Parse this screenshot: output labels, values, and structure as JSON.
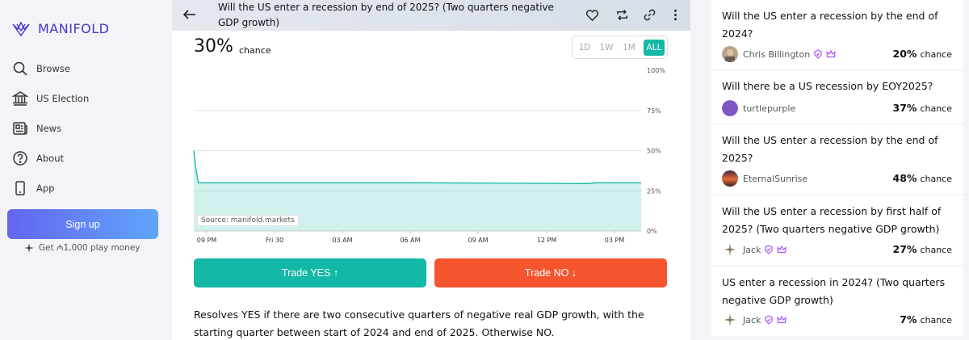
{
  "brand": {
    "name": "MANIFOLD",
    "accent": "#4337c9"
  },
  "nav": [
    {
      "label": "Browse",
      "icon": "search-icon"
    },
    {
      "label": "US Election",
      "icon": "capitol-icon"
    },
    {
      "label": "News",
      "icon": "newspaper-icon"
    },
    {
      "label": "About",
      "icon": "question-circle-icon"
    },
    {
      "label": "App",
      "icon": "phone-icon"
    }
  ],
  "signup": {
    "label": "Sign up",
    "bonus": "Get ₼1,000 play money"
  },
  "market": {
    "title": "Will the US enter a recession by end of 2025? (Two quarters negative GDP growth)",
    "probability": "30%",
    "probability_word": "chance",
    "ranges": [
      "1D",
      "1W",
      "1M",
      "ALL"
    ],
    "active_range": "ALL",
    "source": "Source: manifold.markets",
    "trade_yes": "Trade YES ↑",
    "trade_no": "Trade NO ↓",
    "description": "Resolves YES if there are two consecutive quarters of negative real GDP growth, with the starting quarter between start of 2024 and end of 2025. Otherwise NO."
  },
  "chart_data": {
    "type": "area",
    "color": "#14b8a6",
    "x_ticks": [
      "09 PM",
      "Fri 30",
      "03 AM",
      "06 AM",
      "09 AM",
      "12 PM",
      "03 PM"
    ],
    "y_ticks": [
      "100%",
      "75%",
      "50%",
      "25%",
      "0%"
    ],
    "ylim": [
      0,
      100
    ],
    "x_range": [
      0,
      1
    ],
    "points": [
      {
        "x": 0.0,
        "y": 50
      },
      {
        "x": 0.004,
        "y": 40
      },
      {
        "x": 0.01,
        "y": 30
      },
      {
        "x": 0.08,
        "y": 30
      },
      {
        "x": 0.5,
        "y": 30
      },
      {
        "x": 0.88,
        "y": 29.5
      },
      {
        "x": 0.9,
        "y": 30
      },
      {
        "x": 1.0,
        "y": 30
      }
    ]
  },
  "related": [
    {
      "question": "Will the US enter a recession by the end of 2024?",
      "user": "Chris Billington",
      "avatar": "photo-avatar",
      "badges": [
        "verified-badge-icon",
        "crown-icon"
      ],
      "prob": "20%",
      "word": "chance"
    },
    {
      "question": "Will there be a US recession by EOY2025?",
      "user": "turtlepurple",
      "avatar": "purple-circle-avatar",
      "badges": [],
      "prob": "37%",
      "word": "chance"
    },
    {
      "question": "Will the US enter a recession by the end of 2025?",
      "user": "EternalSunrise",
      "avatar": "sunset-avatar",
      "badges": [],
      "prob": "48%",
      "word": "chance"
    },
    {
      "question": "Will the US enter a recession by first half of 2025? (Two quarters negative GDP growth)",
      "user": "Jack",
      "avatar": "sparkle-avatar",
      "badges": [
        "verified-badge-icon",
        "crown-icon"
      ],
      "prob": "27%",
      "word": "chance"
    },
    {
      "question": "US enter a recession in 2024? (Two quarters negative GDP growth)",
      "user": "Jack",
      "avatar": "sparkle-avatar",
      "badges": [
        "verified-badge-icon",
        "crown-icon"
      ],
      "prob": "7%",
      "word": "chance"
    }
  ]
}
